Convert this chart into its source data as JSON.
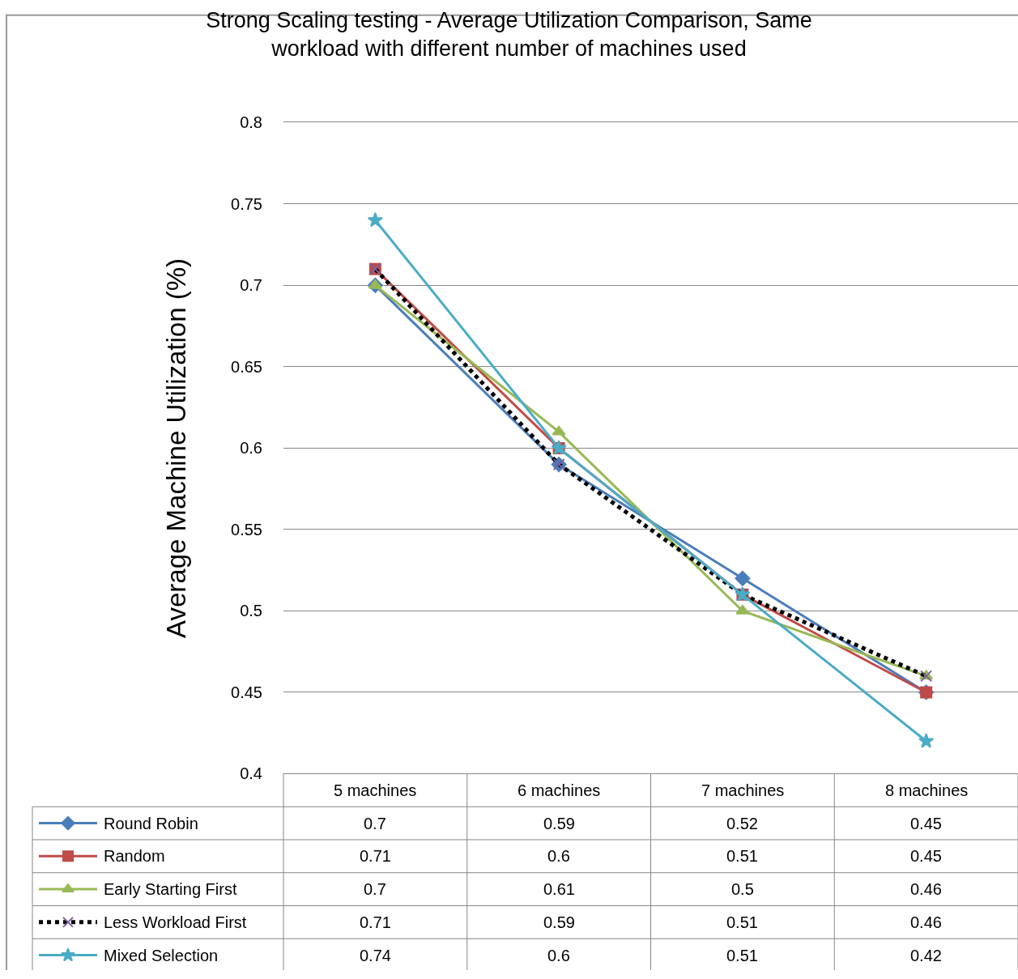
{
  "chart_data": {
    "type": "line",
    "title": "Strong Scaling testing - Average Utilization Comparison, Same\nworkload with different number of machines used",
    "ylabel": "Average Machine Utilization (%)",
    "categories": [
      "5 machines",
      "6 machines",
      "7 machines",
      "8 machines"
    ],
    "series": [
      {
        "name": "Round Robin",
        "color": "#4a7ebb",
        "marker": "diamond",
        "values": [
          0.7,
          0.59,
          0.52,
          0.45
        ]
      },
      {
        "name": "Random",
        "color": "#be4b48",
        "marker": "square",
        "values": [
          0.71,
          0.6,
          0.51,
          0.45
        ]
      },
      {
        "name": "Early Starting First",
        "color": "#98b954",
        "marker": "triangle",
        "values": [
          0.7,
          0.61,
          0.5,
          0.46
        ]
      },
      {
        "name": "Less Workload First",
        "color": "#000000",
        "colors": [
          "#7d60a0",
          "#7d60a0",
          "#7d60a0",
          "#7d60a0"
        ],
        "marker": "cross",
        "line_style": "dotted",
        "values": [
          0.71,
          0.59,
          0.51,
          0.46
        ]
      },
      {
        "name": "Mixed Selection",
        "color": "#4bacc6",
        "marker": "star",
        "values": [
          0.74,
          0.6,
          0.51,
          0.42
        ]
      }
    ],
    "ylim": [
      0.4,
      0.8
    ],
    "yticks": [
      0.4,
      0.45,
      0.5,
      0.55,
      0.6,
      0.65,
      0.7,
      0.75,
      0.8
    ],
    "grid": "y",
    "legend": "bottom left",
    "data_labels": true
  }
}
